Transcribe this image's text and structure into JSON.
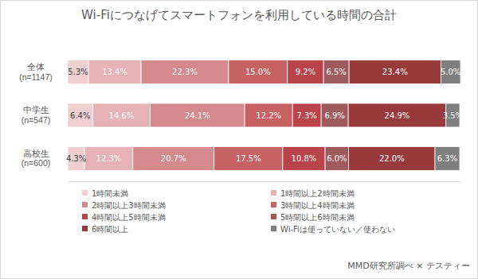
{
  "chart_data": {
    "type": "bar",
    "orientation": "horizontal",
    "stacked": true,
    "data_labels": true,
    "tick_labels": "y",
    "legend": "bottom",
    "title": "Wi-Fiにつなげてスマートフォンを利用している時間の合計",
    "source": "MMD研究所調べ × テスティー",
    "categories": [
      "全体\n(n=1147)",
      "中学生\n(n=547)",
      "高校生\n(n=600)"
    ],
    "xlim": [
      0,
      100.1
    ],
    "xticks": [],
    "series": [
      {
        "name": "1時間未満",
        "color": "#f0cfd1",
        "values": [
          5.3,
          6.4,
          4.3
        ],
        "value_labels": [
          "5.3%",
          "6.4%",
          "4.3%"
        ]
      },
      {
        "name": "1時間以上2時間未満",
        "color": "#e6b2b5",
        "values": [
          13.4,
          14.6,
          12.3
        ],
        "value_labels": [
          "13.4%",
          "14.6%",
          "12.3%"
        ]
      },
      {
        "name": "2時間以上3時間未満",
        "color": "#d4898c",
        "values": [
          22.3,
          24.1,
          20.7
        ],
        "value_labels": [
          "22.3%",
          "24.1%",
          "20.7%"
        ]
      },
      {
        "name": "3時間以上4時間未満",
        "color": "#c66264",
        "values": [
          15.0,
          12.2,
          17.5
        ],
        "value_labels": [
          "15.0%",
          "12.2%",
          "17.5%"
        ]
      },
      {
        "name": "4時間以上5時間未満",
        "color": "#b9434a",
        "values": [
          9.2,
          7.3,
          10.8
        ],
        "value_labels": [
          "9.2%",
          "7.3%",
          "10.8%"
        ]
      },
      {
        "name": "5時間以上6時間未満",
        "color": "#9e5a5c",
        "values": [
          6.5,
          6.9,
          6.0
        ],
        "value_labels": [
          "6.5%",
          "6.9%",
          "6.0%"
        ]
      },
      {
        "name": "6時間以上",
        "color": "#983a3c",
        "values": [
          23.4,
          24.9,
          22.0
        ],
        "value_labels": [
          "23.4%",
          "24.9%",
          "22.0%"
        ]
      },
      {
        "name": "Wi-Fiは使っていない／使わない",
        "color": "#7f7f7f",
        "values": [
          5.0,
          3.5,
          6.3
        ],
        "value_labels": [
          "5.0%",
          "3.5%",
          "6.3%"
        ]
      }
    ]
  }
}
